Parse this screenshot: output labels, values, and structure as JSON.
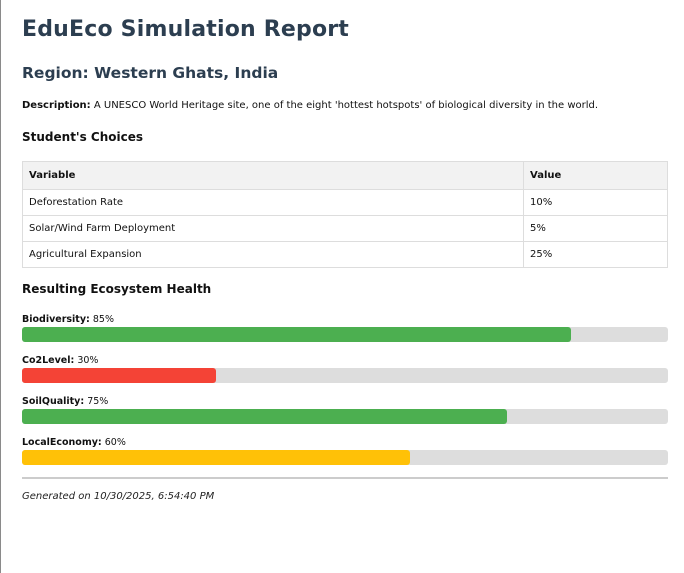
{
  "report": {
    "title": "EduEco Simulation Report",
    "region_heading": "Region: Western Ghats, India",
    "description_label": "Description:",
    "description_text": " A UNESCO World Heritage site, one of the eight 'hottest hotspots' of biological diversity in the world."
  },
  "choices": {
    "heading": "Student's Choices",
    "columns": [
      "Variable",
      "Value"
    ],
    "rows": [
      {
        "variable": "Deforestation Rate",
        "value": "10%"
      },
      {
        "variable": "Solar/Wind Farm Deployment",
        "value": "5%"
      },
      {
        "variable": "Agricultural Expansion",
        "value": "25%"
      }
    ]
  },
  "health": {
    "heading": "Resulting Ecosystem Health",
    "metrics": [
      {
        "label": "Biodiversity:",
        "value": " 85%",
        "percent": 85,
        "color": "#4caf50"
      },
      {
        "label": "Co2Level:",
        "value": " 30%",
        "percent": 30,
        "color": "#f44336"
      },
      {
        "label": "SoilQuality:",
        "value": " 75%",
        "percent": 75,
        "color": "#4caf50"
      },
      {
        "label": "LocalEconomy:",
        "value": " 60%",
        "percent": 60,
        "color": "#ffc107"
      }
    ]
  },
  "footer": {
    "generated": "Generated on 10/30/2025, 6:54:40 PM"
  },
  "colors": {
    "heading": "#2c3e50",
    "track": "#dddddd",
    "good": "#4caf50",
    "bad": "#f44336",
    "warn": "#ffc107"
  }
}
